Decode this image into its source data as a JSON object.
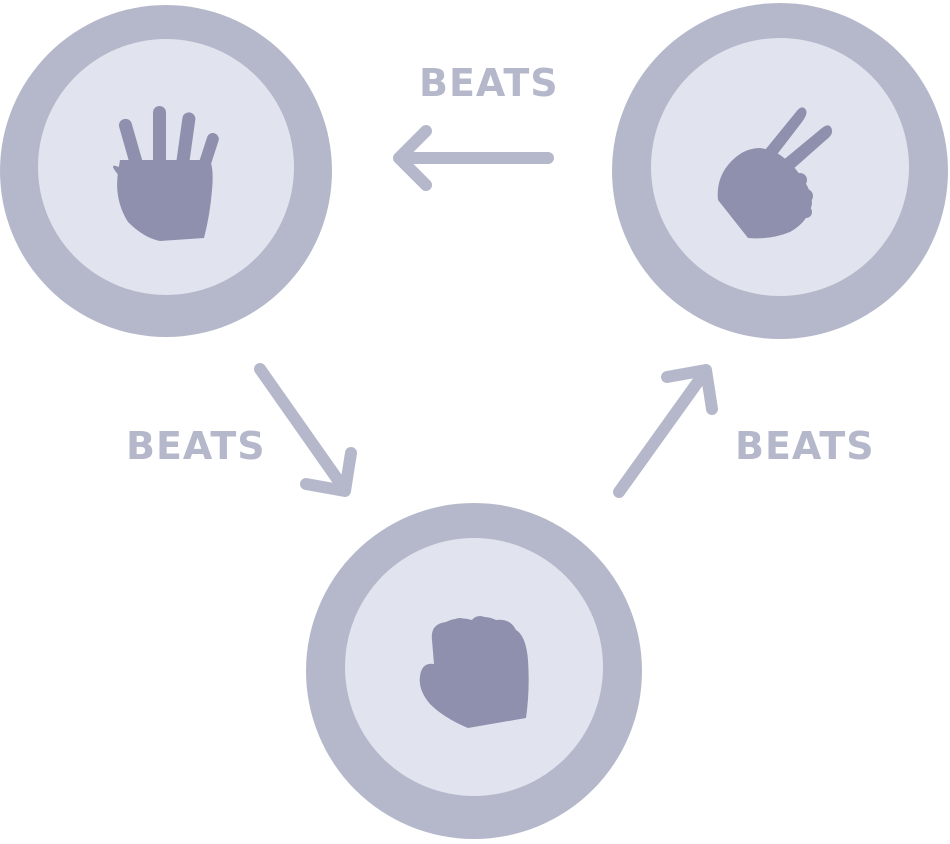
{
  "colors": {
    "outer_ring": "#b5b8ca",
    "inner_disc": "#e1e3ee",
    "hand": "#8e90ad",
    "arrow": "#b5b8ca",
    "label": "#b5b8ca",
    "background": "#ffffff"
  },
  "nodes": [
    {
      "id": "paper",
      "icon": "open-hand-paper-icon"
    },
    {
      "id": "scissors",
      "icon": "two-finger-scissors-icon"
    },
    {
      "id": "rock",
      "icon": "closed-fist-rock-icon"
    }
  ],
  "edges": [
    {
      "from": "scissors",
      "to": "paper",
      "label": "BEATS"
    },
    {
      "from": "paper",
      "to": "rock",
      "label": "BEATS"
    },
    {
      "from": "rock",
      "to": "scissors",
      "label": "BEATS"
    }
  ]
}
